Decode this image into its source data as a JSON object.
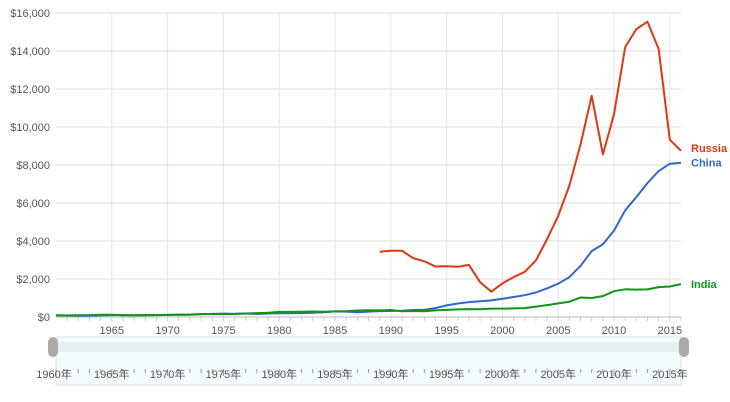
{
  "chart_data": {
    "type": "line",
    "title": "",
    "xlabel": "",
    "ylabel": "",
    "xlim": [
      1960,
      2016
    ],
    "ylim": [
      0,
      16000
    ],
    "grid": true,
    "yticks": [
      "$0",
      "$2,000",
      "$4,000",
      "$6,000",
      "$8,000",
      "$10,000",
      "$12,000",
      "$14,000",
      "$16,000"
    ],
    "xticks": [
      "1965",
      "1970",
      "1975",
      "1980",
      "1985",
      "1990",
      "1995",
      "2000",
      "2005",
      "2010",
      "2015"
    ],
    "series": [
      {
        "name": "Russia",
        "color": "#dc3912",
        "start": 1989,
        "values": [
          3430,
          3490,
          3490,
          3100,
          2930,
          2660,
          2670,
          2640,
          2740,
          1830,
          1330,
          1770,
          2100,
          2380,
          2980,
          4100,
          5320,
          6920,
          9100,
          11640,
          8560,
          10670,
          14210,
          15150,
          15540,
          14100,
          9330,
          8750
        ]
      },
      {
        "name": "China",
        "color": "#3366cc",
        "start": 1960,
        "values": [
          90,
          76,
          70,
          74,
          85,
          98,
          104,
          97,
          91,
          100,
          113,
          119,
          132,
          157,
          160,
          178,
          165,
          185,
          156,
          183,
          195,
          197,
          203,
          225,
          251,
          294,
          282,
          252,
          284,
          310,
          317,
          333,
          366,
          377,
          470,
          610,
          709,
          782,
          829,
          873,
          959,
          1053,
          1149,
          1289,
          1509,
          1753,
          2099,
          2694,
          3468,
          3832,
          4550,
          5618,
          6317,
          7051,
          7679,
          8067,
          8123
        ]
      },
      {
        "name": "India",
        "color": "#109618",
        "start": 1960,
        "values": [
          82,
          85,
          90,
          101,
          116,
          119,
          90,
          96,
          99,
          107,
          112,
          118,
          122,
          143,
          163,
          158,
          161,
          186,
          206,
          224,
          267,
          270,
          274,
          292,
          277,
          296,
          310,
          340,
          354,
          346,
          368,
          303,
          317,
          301,
          346,
          374,
          400,
          415,
          413,
          441,
          443,
          452,
          471,
          546,
          627,
          714,
          806,
          1028,
          999,
          1102,
          1358,
          1458,
          1444,
          1450,
          1574,
          1606,
          1730
        ]
      }
    ],
    "legend": "right-end labels"
  },
  "slider": {
    "labels": [
      "1960年",
      "1965年",
      "1970年",
      "1975年",
      "1980年",
      "1985年",
      "1990年",
      "1995年",
      "2000年",
      "2005年",
      "2010年",
      "2015年"
    ],
    "range": [
      1960,
      2016
    ]
  }
}
